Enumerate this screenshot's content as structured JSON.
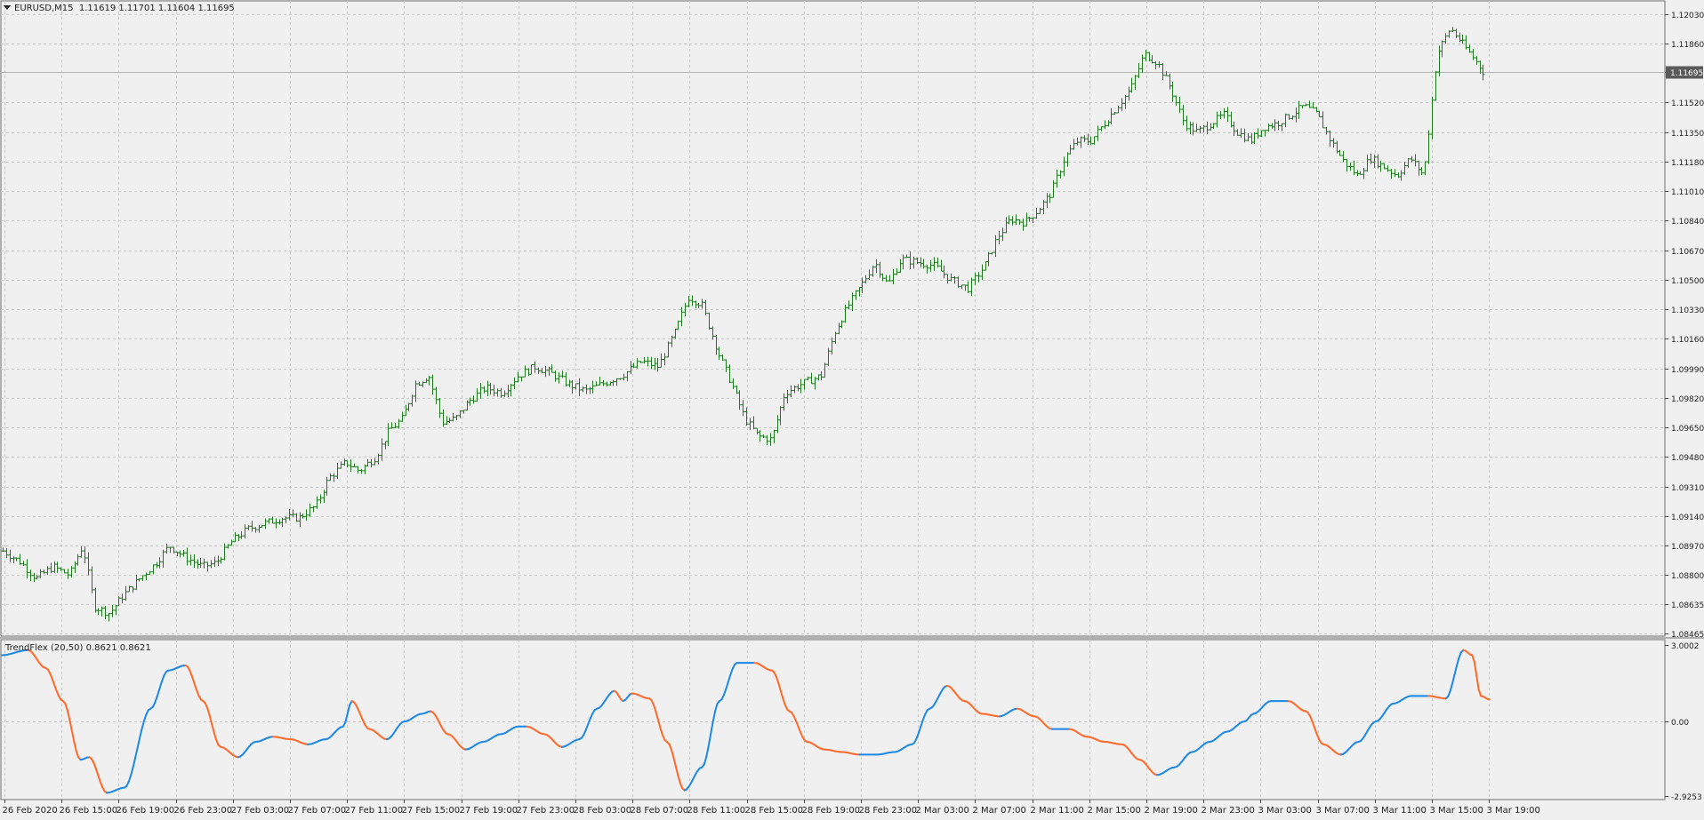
{
  "main": {
    "symbol": "EURUSD,M15",
    "ohlc": "1.11619 1.11701 1.11604 1.11695",
    "current_price": "1.11695"
  },
  "indicator": {
    "name": "TrendFlex (20,50)",
    "values": "0.8621 0.8621"
  },
  "colors": {
    "background": "#f0f0f0",
    "grid": "#c8c8c8",
    "bars": "#1f7a1f",
    "trend_up": "#1e88e5",
    "trend_down": "#ff6a2a",
    "price_line": "#b4b4b4",
    "price_tag_bg": "#5a5a5a"
  },
  "chart_data": [
    {
      "type": "ohlc",
      "title": "EURUSD,M15",
      "y_ticks": [
        "1.12030",
        "1.11860",
        "1.11695",
        "1.11520",
        "1.11350",
        "1.11180",
        "1.11010",
        "1.10840",
        "1.10670",
        "1.10500",
        "1.10330",
        "1.10160",
        "1.09990",
        "1.09820",
        "1.09650",
        "1.09480",
        "1.09310",
        "1.09140",
        "1.08970",
        "1.08800",
        "1.08635",
        "1.08465"
      ],
      "ylim": [
        1.08465,
        1.1209
      ],
      "x_ticks": [
        "26 Feb 2020",
        "26 Feb 15:00",
        "26 Feb 19:00",
        "26 Feb 23:00",
        "27 Feb 03:00",
        "27 Feb 07:00",
        "27 Feb 11:00",
        "27 Feb 15:00",
        "27 Feb 19:00",
        "27 Feb 23:00",
        "28 Feb 03:00",
        "28 Feb 07:00",
        "28 Feb 11:00",
        "28 Feb 15:00",
        "28 Feb 19:00",
        "28 Feb 23:00",
        "2 Mar 03:00",
        "2 Mar 07:00",
        "2 Mar 11:00",
        "2 Mar 15:00",
        "2 Mar 19:00",
        "2 Mar 23:00",
        "3 Mar 03:00",
        "3 Mar 07:00",
        "3 Mar 11:00",
        "3 Mar 15:00",
        "3 Mar 19:00"
      ],
      "bars_approx_close": [
        [
          0,
          1.0894
        ],
        [
          10,
          1.0888
        ],
        [
          20,
          1.0878
        ],
        [
          30,
          1.0885
        ],
        [
          40,
          1.088
        ],
        [
          48,
          1.0897
        ],
        [
          55,
          1.0862
        ],
        [
          64,
          1.0858
        ],
        [
          72,
          1.0868
        ],
        [
          82,
          1.0878
        ],
        [
          92,
          1.0887
        ],
        [
          100,
          1.0897
        ],
        [
          110,
          1.089
        ],
        [
          120,
          1.0885
        ],
        [
          128,
          1.0887
        ],
        [
          138,
          1.09
        ],
        [
          148,
          1.0907
        ],
        [
          158,
          1.091
        ],
        [
          168,
          1.0913
        ],
        [
          178,
          1.0913
        ],
        [
          188,
          1.092
        ],
        [
          196,
          1.0936
        ],
        [
          206,
          1.0945
        ],
        [
          214,
          1.094
        ],
        [
          224,
          1.0948
        ],
        [
          232,
          1.0963
        ],
        [
          240,
          1.097
        ],
        [
          248,
          1.099
        ],
        [
          256,
          1.0995
        ],
        [
          264,
          1.0968
        ],
        [
          272,
          1.097
        ],
        [
          280,
          1.098
        ],
        [
          290,
          1.0988
        ],
        [
          300,
          1.0985
        ],
        [
          310,
          1.0995
        ],
        [
          320,
          1.1
        ],
        [
          330,
          1.0996
        ],
        [
          340,
          1.099
        ],
        [
          350,
          1.0986
        ],
        [
          360,
          1.099
        ],
        [
          372,
          1.0995
        ],
        [
          384,
          1.1003
        ],
        [
          394,
          1.1
        ],
        [
          404,
          1.102
        ],
        [
          412,
          1.104
        ],
        [
          420,
          1.1036
        ],
        [
          430,
          1.1008
        ],
        [
          438,
          1.099
        ],
        [
          446,
          1.097
        ],
        [
          454,
          1.096
        ],
        [
          462,
          1.0958
        ],
        [
          470,
          1.0985
        ],
        [
          480,
          1.099
        ],
        [
          492,
          1.0995
        ],
        [
          500,
          1.102
        ],
        [
          508,
          1.1035
        ],
        [
          516,
          1.1047
        ],
        [
          524,
          1.106
        ],
        [
          532,
          1.1047
        ],
        [
          540,
          1.1062
        ],
        [
          550,
          1.106
        ],
        [
          560,
          1.1058
        ],
        [
          570,
          1.105
        ],
        [
          580,
          1.1045
        ],
        [
          590,
          1.1058
        ],
        [
          598,
          1.1075
        ],
        [
          606,
          1.1085
        ],
        [
          614,
          1.1083
        ],
        [
          622,
          1.109
        ],
        [
          630,
          1.11
        ],
        [
          638,
          1.112
        ],
        [
          646,
          1.113
        ],
        [
          654,
          1.113
        ],
        [
          662,
          1.114
        ],
        [
          670,
          1.115
        ],
        [
          678,
          1.116
        ],
        [
          686,
          1.118
        ],
        [
          694,
          1.1175
        ],
        [
          702,
          1.116
        ],
        [
          710,
          1.114
        ],
        [
          718,
          1.1135
        ],
        [
          726,
          1.114
        ],
        [
          734,
          1.1145
        ],
        [
          742,
          1.1135
        ],
        [
          750,
          1.113
        ],
        [
          758,
          1.1138
        ],
        [
          766,
          1.114
        ],
        [
          774,
          1.1145
        ],
        [
          782,
          1.115
        ],
        [
          790,
          1.1145
        ],
        [
          798,
          1.113
        ],
        [
          806,
          1.1118
        ],
        [
          814,
          1.111
        ],
        [
          822,
          1.112
        ],
        [
          830,
          1.1115
        ],
        [
          838,
          1.111
        ],
        [
          846,
          1.112
        ],
        [
          854,
          1.111
        ],
        [
          862,
          1.118
        ],
        [
          870,
          1.1195
        ],
        [
          878,
          1.1185
        ],
        [
          886,
          1.1175
        ],
        [
          890,
          1.11695
        ]
      ]
    },
    {
      "type": "line",
      "title": "TrendFlex (20,50)",
      "y_ticks": [
        "3.0002",
        "0.00",
        "-2.9253"
      ],
      "ylim": [
        -2.9253,
        3.0002
      ],
      "series": [
        {
          "name": "TrendFlex (20,50)",
          "last_value": 0.8621
        }
      ],
      "approx_points": [
        [
          0,
          2.6
        ],
        [
          6,
          2.8
        ],
        [
          10,
          2.1
        ],
        [
          14,
          0.8
        ],
        [
          18,
          -1.5
        ],
        [
          20,
          -1.4
        ],
        [
          24,
          -2.8
        ],
        [
          28,
          -2.6
        ],
        [
          34,
          0.5
        ],
        [
          38,
          2.0
        ],
        [
          42,
          2.2
        ],
        [
          46,
          0.8
        ],
        [
          50,
          -1.0
        ],
        [
          54,
          -1.4
        ],
        [
          58,
          -0.8
        ],
        [
          62,
          -0.6
        ],
        [
          66,
          -0.7
        ],
        [
          70,
          -0.9
        ],
        [
          74,
          -0.7
        ],
        [
          78,
          -0.2
        ],
        [
          80,
          0.8
        ],
        [
          84,
          -0.3
        ],
        [
          88,
          -0.7
        ],
        [
          92,
          0.0
        ],
        [
          96,
          0.3
        ],
        [
          98,
          0.4
        ],
        [
          102,
          -0.5
        ],
        [
          106,
          -1.1
        ],
        [
          110,
          -0.8
        ],
        [
          114,
          -0.5
        ],
        [
          118,
          -0.2
        ],
        [
          120,
          -0.2
        ],
        [
          124,
          -0.5
        ],
        [
          128,
          -1.0
        ],
        [
          132,
          -0.7
        ],
        [
          136,
          0.5
        ],
        [
          140,
          1.2
        ],
        [
          142,
          0.8
        ],
        [
          144,
          1.1
        ],
        [
          148,
          0.9
        ],
        [
          152,
          -0.8
        ],
        [
          156,
          -2.7
        ],
        [
          160,
          -1.8
        ],
        [
          164,
          0.8
        ],
        [
          168,
          2.3
        ],
        [
          172,
          2.3
        ],
        [
          176,
          2.0
        ],
        [
          180,
          0.4
        ],
        [
          184,
          -0.8
        ],
        [
          188,
          -1.1
        ],
        [
          192,
          -1.2
        ],
        [
          196,
          -1.3
        ],
        [
          200,
          -1.3
        ],
        [
          204,
          -1.2
        ],
        [
          208,
          -0.9
        ],
        [
          212,
          0.5
        ],
        [
          216,
          1.4
        ],
        [
          220,
          0.8
        ],
        [
          224,
          0.3
        ],
        [
          228,
          0.2
        ],
        [
          232,
          0.5
        ],
        [
          236,
          0.2
        ],
        [
          240,
          -0.3
        ],
        [
          244,
          -0.3
        ],
        [
          248,
          -0.6
        ],
        [
          252,
          -0.8
        ],
        [
          256,
          -0.9
        ],
        [
          260,
          -1.5
        ],
        [
          264,
          -2.1
        ],
        [
          268,
          -1.8
        ],
        [
          272,
          -1.2
        ],
        [
          276,
          -0.8
        ],
        [
          280,
          -0.4
        ],
        [
          284,
          0.0
        ],
        [
          286,
          0.3
        ],
        [
          290,
          0.8
        ],
        [
          294,
          0.8
        ],
        [
          298,
          0.4
        ],
        [
          302,
          -0.9
        ],
        [
          306,
          -1.3
        ],
        [
          310,
          -0.8
        ],
        [
          314,
          0.0
        ],
        [
          318,
          0.7
        ],
        [
          322,
          1.0
        ],
        [
          326,
          1.0
        ],
        [
          330,
          0.9
        ],
        [
          334,
          2.8
        ],
        [
          336,
          2.6
        ],
        [
          338,
          1.0
        ],
        [
          340,
          0.86
        ]
      ]
    }
  ]
}
